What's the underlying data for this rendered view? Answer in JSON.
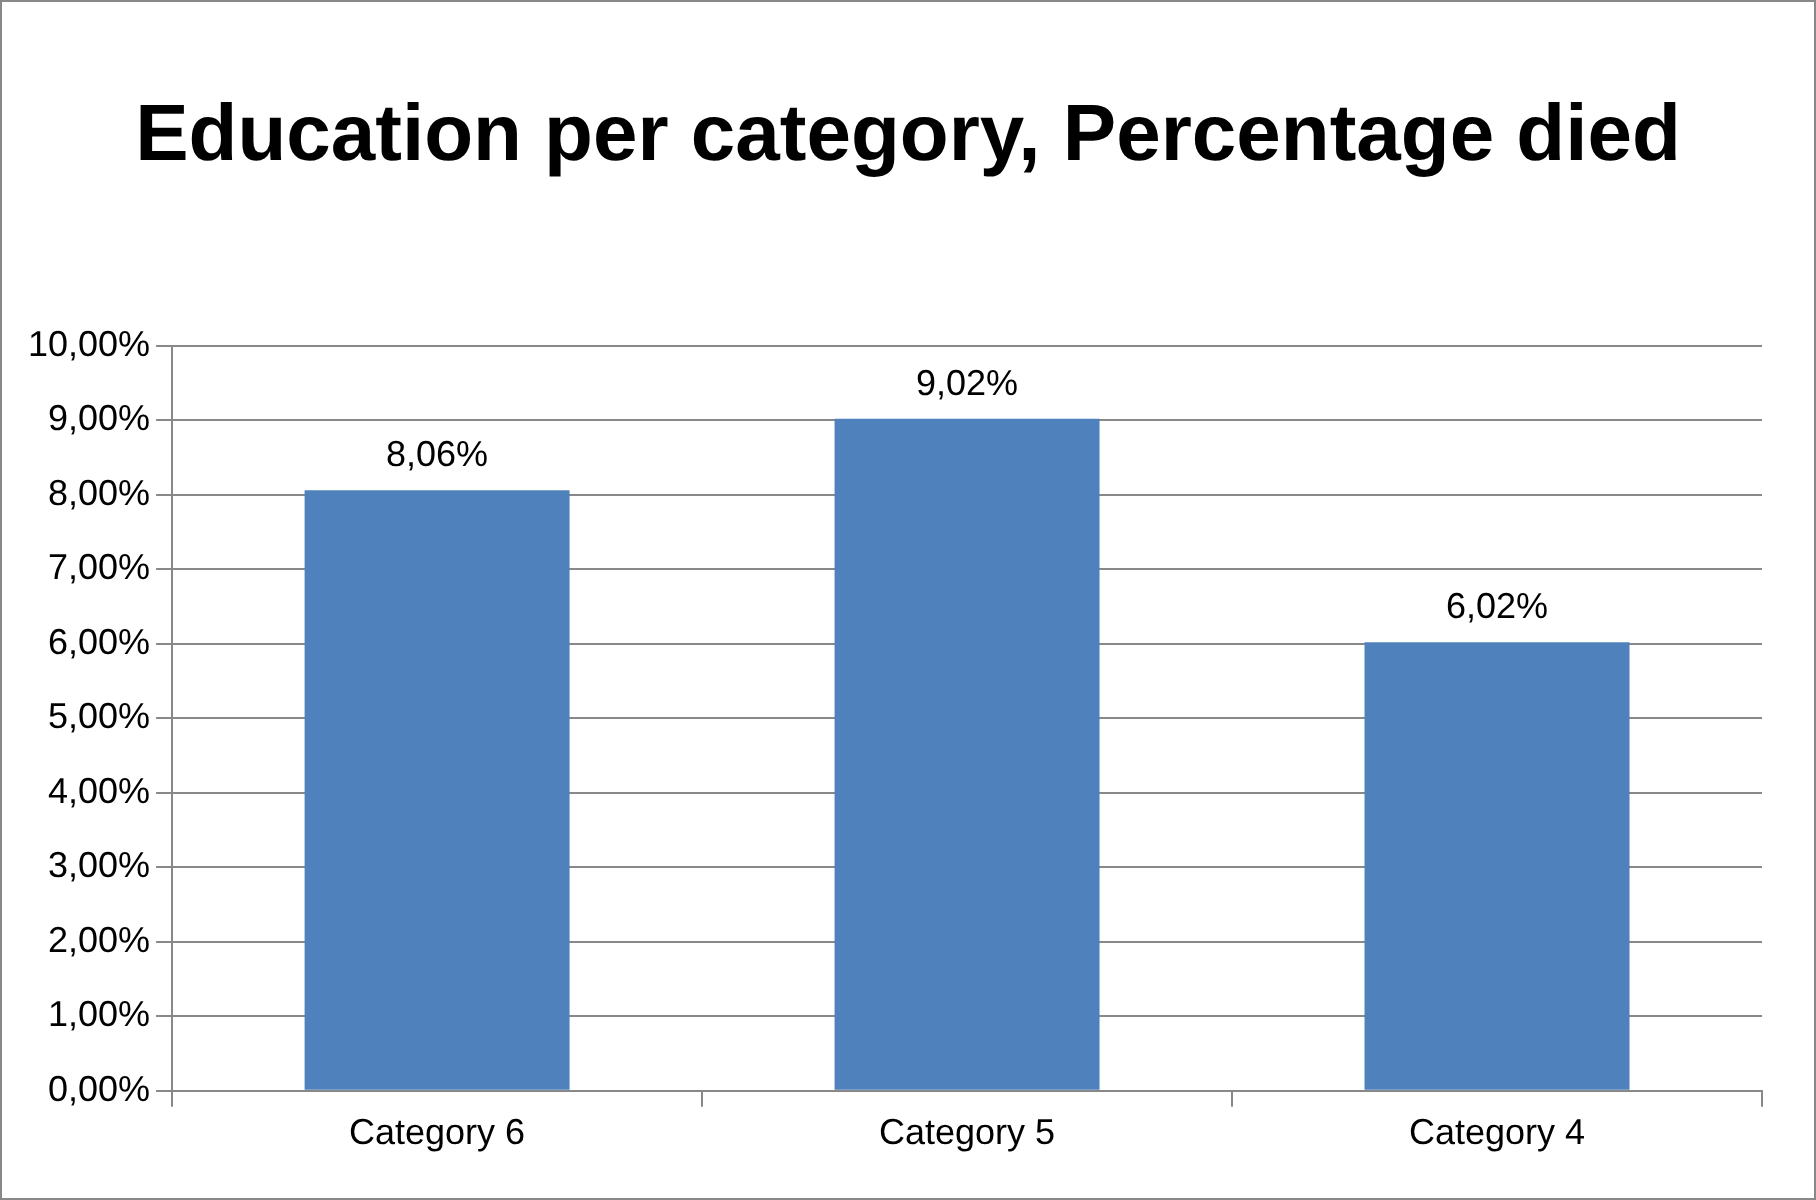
{
  "chart_data": {
    "type": "bar",
    "title": "Education per category, Percentage died",
    "categories": [
      "Category 6",
      "Category 5",
      "Category 4"
    ],
    "values": [
      8.06,
      9.02,
      6.02
    ],
    "value_labels": [
      "8,06%",
      "9,02%",
      "6,02%"
    ],
    "color": "#4f81bd",
    "ylim": [
      0,
      10
    ],
    "yticks": [
      {
        "value": 0,
        "label": "0,00%"
      },
      {
        "value": 1,
        "label": "1,00%"
      },
      {
        "value": 2,
        "label": "2,00%"
      },
      {
        "value": 3,
        "label": "3,00%"
      },
      {
        "value": 4,
        "label": "4,00%"
      },
      {
        "value": 5,
        "label": "5,00%"
      },
      {
        "value": 6,
        "label": "6,00%"
      },
      {
        "value": 7,
        "label": "7,00%"
      },
      {
        "value": 8,
        "label": "8,00%"
      },
      {
        "value": 9,
        "label": "9,00%"
      },
      {
        "value": 10,
        "label": "10,00%"
      }
    ],
    "grid": "y"
  }
}
